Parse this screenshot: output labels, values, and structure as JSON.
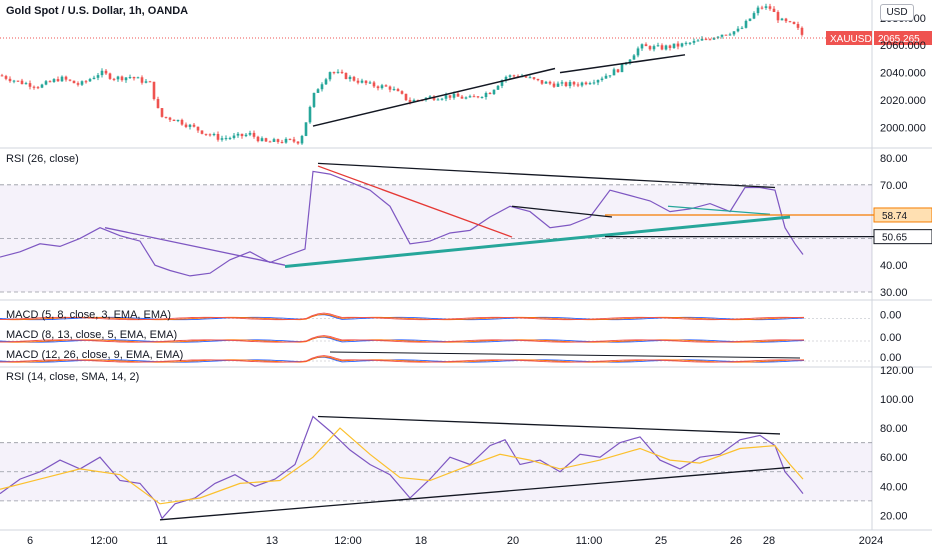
{
  "header": {
    "title": "Gold Spot / U.S. Dollar, 1h, OANDA",
    "currency_button": "USD"
  },
  "chart_data": [
    {
      "type": "candlestick",
      "title": "Gold Spot / U.S. Dollar, 1h, OANDA",
      "ylim": [
        1985,
        2093
      ],
      "y_ticks": [
        "2080.000",
        "2060.000",
        "2040.000",
        "2020.000",
        "2000.000"
      ],
      "y_tick_values": [
        2080,
        2060,
        2040,
        2020,
        2000
      ],
      "last_price": {
        "label": "XAUUSD",
        "value": "2065.265",
        "numeric": 2065.265
      },
      "colors": {
        "up": "#26a69a",
        "down": "#ef5350",
        "trendline": "#131722"
      },
      "close_path": [
        [
          0,
          2038
        ],
        [
          20,
          2033
        ],
        [
          40,
          2030
        ],
        [
          60,
          2036
        ],
        [
          80,
          2031
        ],
        [
          100,
          2040
        ],
        [
          115,
          2036
        ],
        [
          130,
          2037
        ],
        [
          150,
          2032
        ],
        [
          160,
          2008
        ],
        [
          175,
          2006
        ],
        [
          190,
          2001
        ],
        [
          205,
          1996
        ],
        [
          220,
          1992
        ],
        [
          235,
          1993
        ],
        [
          250,
          1995
        ],
        [
          265,
          1989
        ],
        [
          280,
          1990
        ],
        [
          300,
          1990
        ],
        [
          315,
          2026
        ],
        [
          330,
          2041
        ],
        [
          350,
          2036
        ],
        [
          370,
          2031
        ],
        [
          390,
          2029
        ],
        [
          410,
          2019
        ],
        [
          430,
          2022
        ],
        [
          450,
          2023
        ],
        [
          470,
          2021
        ],
        [
          490,
          2026
        ],
        [
          505,
          2037
        ],
        [
          520,
          2038
        ],
        [
          540,
          2033
        ],
        [
          560,
          2031
        ],
        [
          580,
          2032
        ],
        [
          600,
          2036
        ],
        [
          620,
          2043
        ],
        [
          640,
          2059
        ],
        [
          660,
          2058
        ],
        [
          680,
          2060
        ],
        [
          700,
          2063
        ],
        [
          720,
          2068
        ],
        [
          740,
          2071
        ],
        [
          760,
          2088
        ],
        [
          770,
          2087
        ],
        [
          780,
          2078
        ],
        [
          795,
          2074
        ],
        [
          805,
          2065
        ]
      ],
      "trendlines": [
        [
          [
            313,
            2001
          ],
          [
            555,
            2043
          ]
        ],
        [
          [
            560,
            2040
          ],
          [
            685,
            2053
          ]
        ]
      ]
    },
    {
      "type": "line",
      "title": "RSI (26, close)",
      "ylim": [
        27,
        83
      ],
      "y_ticks": [
        "80.00",
        "70.00",
        "40.00",
        "30.00"
      ],
      "y_tick_values": [
        80,
        70,
        40,
        30
      ],
      "bands": {
        "upper": 70,
        "middle": 50,
        "lower": 30
      },
      "current_labels": [
        {
          "value": "58.74",
          "numeric": 58.74,
          "color": "#f57c00"
        },
        {
          "value": "50.65",
          "numeric": 50.65,
          "color": "#131722"
        }
      ],
      "series": [
        {
          "color": "#7e57c2",
          "points": [
            [
              0,
              43
            ],
            [
              20,
              45
            ],
            [
              40,
              48
            ],
            [
              60,
              47
            ],
            [
              80,
              50
            ],
            [
              100,
              54
            ],
            [
              120,
              51
            ],
            [
              140,
              49
            ],
            [
              155,
              40
            ],
            [
              170,
              38
            ],
            [
              190,
              36
            ],
            [
              210,
              37
            ],
            [
              230,
              42
            ],
            [
              250,
              45
            ],
            [
              270,
              41
            ],
            [
              290,
              44
            ],
            [
              305,
              46
            ],
            [
              313,
              75
            ],
            [
              330,
              74
            ],
            [
              350,
              71
            ],
            [
              370,
              68
            ],
            [
              390,
              62
            ],
            [
              410,
              48
            ],
            [
              430,
              49
            ],
            [
              450,
              52
            ],
            [
              470,
              53
            ],
            [
              490,
              58
            ],
            [
              510,
              62
            ],
            [
              530,
              60
            ],
            [
              550,
              54
            ],
            [
              570,
              55
            ],
            [
              590,
              58
            ],
            [
              610,
              68
            ],
            [
              630,
              66
            ],
            [
              650,
              64
            ],
            [
              670,
              60
            ],
            [
              690,
              61
            ],
            [
              710,
              63
            ],
            [
              730,
              60
            ],
            [
              745,
              69
            ],
            [
              760,
              69
            ],
            [
              775,
              68
            ],
            [
              785,
              54
            ],
            [
              795,
              48
            ],
            [
              803,
              44
            ]
          ]
        }
      ],
      "trendlines": [
        {
          "color": "#131722",
          "points": [
            [
              318,
              78
            ],
            [
              775,
              69
            ]
          ]
        },
        {
          "color": "#e53935",
          "points": [
            [
              318,
              77
            ],
            [
              512,
              50.5
            ]
          ]
        },
        {
          "color": "#7e57c2",
          "points": [
            [
              105,
              54
            ],
            [
              285,
              40
            ]
          ]
        },
        {
          "color": "#26a69a",
          "points": [
            [
              285,
              39.5
            ],
            [
              790,
              58
            ]
          ]
        },
        {
          "color": "#131722",
          "points": [
            [
              512,
              62
            ],
            [
              612,
              58
            ]
          ]
        },
        {
          "color": "#26a69a",
          "points": [
            [
              668,
              62
            ],
            [
              770,
              59
            ]
          ]
        },
        {
          "color": "#f57c00",
          "points": [
            [
              605,
              58.74
            ],
            [
              932,
              58.74
            ]
          ]
        },
        {
          "color": "#131722",
          "points": [
            [
              605,
              50.65
            ],
            [
              932,
              50.65
            ]
          ]
        }
      ]
    },
    {
      "type": "line",
      "title": "MACD (5, 8, close, 3, EMA, EMA)",
      "ylim": [
        -1,
        1
      ],
      "y_ticks": [
        "0.00"
      ],
      "y_tick_values": [
        0
      ]
    },
    {
      "type": "line",
      "title": "MACD (8, 13, close, 5, EMA, EMA)",
      "ylim": [
        -1,
        1
      ],
      "y_ticks": [
        "0.00"
      ],
      "y_tick_values": [
        0
      ]
    },
    {
      "type": "line",
      "title": "MACD (12, 26, close, 9, EMA, EMA)",
      "ylim": [
        -1,
        1
      ],
      "y_ticks": [
        "0.00"
      ],
      "y_tick_values": [
        0
      ]
    },
    {
      "type": "line",
      "title": "RSI (14, close, SMA, 14, 2)",
      "ylim": [
        10,
        122
      ],
      "y_ticks": [
        "120.00",
        "100.00",
        "80.00",
        "60.00",
        "40.00",
        "20.00"
      ],
      "y_tick_values": [
        120,
        100,
        80,
        60,
        40,
        20
      ],
      "bands": {
        "upper": 70,
        "middle": 50,
        "lower": 30
      },
      "series": [
        {
          "color": "#7e57c2",
          "points": [
            [
              0,
              35
            ],
            [
              20,
              45
            ],
            [
              40,
              50
            ],
            [
              60,
              58
            ],
            [
              80,
              52
            ],
            [
              100,
              60
            ],
            [
              120,
              44
            ],
            [
              140,
              42
            ],
            [
              155,
              30
            ],
            [
              162,
              18
            ],
            [
              175,
              28
            ],
            [
              195,
              32
            ],
            [
              215,
              42
            ],
            [
              235,
              48
            ],
            [
              255,
              40
            ],
            [
              275,
              45
            ],
            [
              295,
              55
            ],
            [
              313,
              88
            ],
            [
              330,
              78
            ],
            [
              350,
              65
            ],
            [
              370,
              55
            ],
            [
              390,
              48
            ],
            [
              410,
              32
            ],
            [
              430,
              45
            ],
            [
              450,
              60
            ],
            [
              470,
              55
            ],
            [
              490,
              68
            ],
            [
              505,
              72
            ],
            [
              520,
              55
            ],
            [
              540,
              58
            ],
            [
              560,
              50
            ],
            [
              580,
              62
            ],
            [
              600,
              60
            ],
            [
              620,
              70
            ],
            [
              640,
              74
            ],
            [
              660,
              58
            ],
            [
              680,
              52
            ],
            [
              700,
              60
            ],
            [
              720,
              62
            ],
            [
              740,
              72
            ],
            [
              760,
              75
            ],
            [
              775,
              68
            ],
            [
              785,
              50
            ],
            [
              795,
              42
            ],
            [
              803,
              35
            ]
          ]
        },
        {
          "color": "#fbc02d",
          "points": [
            [
              0,
              38
            ],
            [
              40,
              45
            ],
            [
              80,
              52
            ],
            [
              120,
              48
            ],
            [
              160,
              28
            ],
            [
              200,
              32
            ],
            [
              240,
              42
            ],
            [
              280,
              44
            ],
            [
              313,
              60
            ],
            [
              340,
              80
            ],
            [
              370,
              62
            ],
            [
              400,
              46
            ],
            [
              430,
              44
            ],
            [
              460,
              52
            ],
            [
              500,
              62
            ],
            [
              530,
              58
            ],
            [
              560,
              52
            ],
            [
              600,
              58
            ],
            [
              640,
              66
            ],
            [
              670,
              58
            ],
            [
              700,
              56
            ],
            [
              740,
              66
            ],
            [
              775,
              68
            ],
            [
              790,
              55
            ],
            [
              803,
              45
            ]
          ]
        }
      ],
      "trendlines": [
        {
          "color": "#131722",
          "points": [
            [
              318,
              88
            ],
            [
              780,
              76
            ]
          ]
        },
        {
          "color": "#131722",
          "points": [
            [
              160,
              17
            ],
            [
              790,
              53
            ]
          ]
        }
      ]
    }
  ],
  "x_axis": {
    "ticks": [
      "6",
      "12:00",
      "11",
      "13",
      "12:00",
      "18",
      "20",
      "11:00",
      "25",
      "26",
      "28",
      "2024"
    ],
    "tick_x": [
      30,
      104,
      162,
      272,
      348,
      421,
      513,
      589,
      661,
      736,
      769,
      871
    ]
  }
}
